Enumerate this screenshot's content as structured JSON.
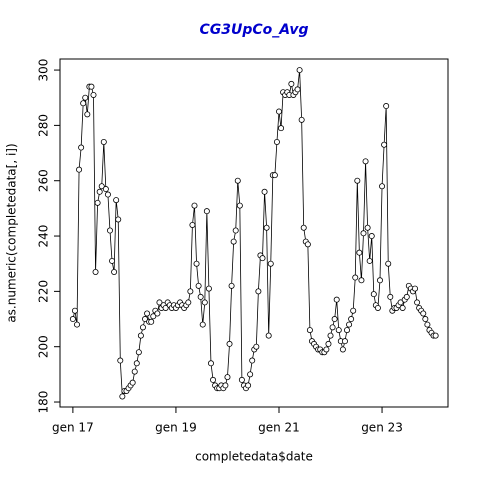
{
  "chart_data": {
    "type": "line",
    "title": "CG3UpCo_Avg",
    "x_label": "completedata$date",
    "y_label": "as.numeric(completedata[, i])",
    "color": "#000000",
    "x": [
      2017,
      2017.04,
      2017.08,
      2017.12,
      2017.16,
      2017.2,
      2017.24,
      2017.28,
      2017.32,
      2017.36,
      2017.4,
      2017.44,
      2017.48,
      2017.52,
      2017.56,
      2017.6,
      2017.64,
      2017.68,
      2017.72,
      2017.76,
      2017.8,
      2017.84,
      2017.88,
      2017.92,
      2017.96,
      2018,
      2018.04,
      2018.08,
      2018.12,
      2018.16,
      2018.2,
      2018.24,
      2018.28,
      2018.32,
      2018.36,
      2018.4,
      2018.44,
      2018.48,
      2018.52,
      2018.56,
      2018.6,
      2018.64,
      2018.68,
      2018.72,
      2018.76,
      2018.8,
      2018.84,
      2018.88,
      2018.92,
      2018.96,
      2019,
      2019.04,
      2019.08,
      2019.12,
      2019.16,
      2019.2,
      2019.24,
      2019.28,
      2019.32,
      2019.36,
      2019.4,
      2019.44,
      2019.48,
      2019.52,
      2019.56,
      2019.6,
      2019.64,
      2019.68,
      2019.72,
      2019.76,
      2019.8,
      2019.84,
      2019.88,
      2019.92,
      2019.96,
      2020,
      2020.04,
      2020.08,
      2020.12,
      2020.16,
      2020.2,
      2020.24,
      2020.28,
      2020.32,
      2020.36,
      2020.4,
      2020.44,
      2020.48,
      2020.52,
      2020.56,
      2020.6,
      2020.64,
      2020.68,
      2020.72,
      2020.76,
      2020.8,
      2020.84,
      2020.88,
      2020.92,
      2020.96,
      2021,
      2021.04,
      2021.08,
      2021.12,
      2021.16,
      2021.2,
      2021.24,
      2021.28,
      2021.32,
      2021.36,
      2021.4,
      2021.44,
      2021.48,
      2021.52,
      2021.56,
      2021.6,
      2021.64,
      2021.68,
      2021.72,
      2021.76,
      2021.8,
      2021.84,
      2021.88,
      2021.92,
      2021.96,
      2022,
      2022.04,
      2022.08,
      2022.12,
      2022.16,
      2022.2,
      2022.24,
      2022.28,
      2022.32,
      2022.36,
      2022.4,
      2022.44,
      2022.48,
      2022.52,
      2022.56,
      2022.6,
      2022.64,
      2022.68,
      2022.72,
      2022.76,
      2022.8,
      2022.84,
      2022.88,
      2022.92,
      2022.96,
      2023,
      2023.04,
      2023.08,
      2023.12,
      2023.16,
      2023.2,
      2023.24,
      2023.28,
      2023.32,
      2023.36,
      2023.4,
      2023.44,
      2023.48,
      2023.52,
      2023.56,
      2023.6,
      2023.64,
      2023.68,
      2023.72,
      2023.76,
      2023.8,
      2023.84,
      2023.88,
      2023.92,
      2023.96,
      2024,
      2024.04
    ],
    "values": [
      210,
      213,
      208,
      264,
      272,
      288,
      290,
      284,
      294,
      294,
      291,
      227,
      252,
      256,
      258,
      274,
      257,
      255,
      242,
      231,
      227,
      253,
      246,
      195,
      182,
      184,
      184,
      185,
      186,
      187,
      191,
      194,
      198,
      204,
      207,
      210,
      212,
      209,
      209,
      211,
      213,
      212,
      216,
      214,
      215,
      214,
      216,
      215,
      214,
      215,
      214,
      215,
      216,
      215,
      214,
      215,
      216,
      220,
      244,
      251,
      230,
      222,
      218,
      208,
      216,
      249,
      221,
      194,
      188,
      186,
      185,
      185,
      186,
      185,
      186,
      189,
      201,
      222,
      238,
      242,
      260,
      251,
      188,
      186,
      185,
      186,
      190,
      195,
      199,
      200,
      220,
      233,
      232,
      256,
      243,
      204,
      230,
      262,
      262,
      274,
      285,
      279,
      292,
      291,
      292,
      291,
      295,
      291,
      292,
      293,
      300,
      282,
      243,
      238,
      237,
      206,
      202,
      201,
      200,
      199,
      199,
      198,
      198,
      199,
      201,
      204,
      207,
      210,
      217,
      206,
      202,
      199,
      202,
      206,
      208,
      210,
      213,
      225,
      260,
      234,
      224,
      241,
      267,
      243,
      231,
      240,
      219,
      215,
      214,
      224,
      258,
      273,
      287,
      230,
      218,
      213,
      214,
      214,
      215,
      216,
      214,
      217,
      218,
      222,
      221,
      220,
      221,
      216,
      214,
      213,
      212,
      210,
      208,
      206,
      205,
      204,
      204
    ],
    "xlim": [
      2016.75,
      2024.28
    ],
    "ylim": [
      178.2,
      304.0
    ],
    "xticks": [
      {
        "value": 2017,
        "label": "gen 17"
      },
      {
        "value": 2019,
        "label": "gen 19"
      },
      {
        "value": 2021,
        "label": "gen 21"
      },
      {
        "value": 2023,
        "label": "gen 23"
      }
    ],
    "yticks": [
      180,
      200,
      220,
      240,
      260,
      280,
      300
    ]
  }
}
